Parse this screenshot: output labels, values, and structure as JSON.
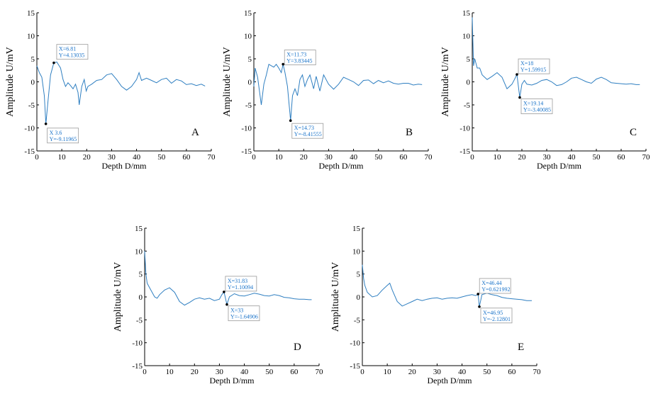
{
  "figure": {
    "panels": [
      {
        "label": "A",
        "xlabel": "Depth D/mm",
        "ylabel": "Amplitude U/mV",
        "xticks": [
          "0",
          "10",
          "20",
          "30",
          "40",
          "50",
          "60",
          "70"
        ],
        "yticks": [
          "15",
          "10",
          "5",
          "0",
          "-5",
          "-10",
          "-15"
        ],
        "datatips": [
          {
            "x_text": "X=6.81",
            "y_text": "Y=4.13035",
            "x": 6.81,
            "y": 4.13035
          },
          {
            "x_text": "X 3.6",
            "y_text": "Y=-9.11965",
            "x": 3.6,
            "y": -9.11965
          }
        ]
      },
      {
        "label": "B",
        "xlabel": "Depth D/mm",
        "ylabel": "Amplitude U/mV",
        "xticks": [
          "0",
          "10",
          "20",
          "30",
          "40",
          "50",
          "60",
          "70"
        ],
        "yticks": [
          "15",
          "10",
          "5",
          "0",
          "-5",
          "-10",
          "-15"
        ],
        "datatips": [
          {
            "x_text": "X=11.73",
            "y_text": "Y=3.83445",
            "x": 11.73,
            "y": 3.83445
          },
          {
            "x_text": "X=14.73",
            "y_text": "Y=-8.41555",
            "x": 14.73,
            "y": -8.41555
          }
        ]
      },
      {
        "label": "C",
        "xlabel": "Depth D/mm",
        "ylabel": "Amplitude U/mV",
        "xticks": [
          "0",
          "10",
          "20",
          "30",
          "40",
          "50",
          "60",
          "70"
        ],
        "yticks": [
          "15",
          "10",
          "5",
          "0",
          "-5",
          "-10",
          "-15"
        ],
        "datatips": [
          {
            "x_text": "X=18",
            "y_text": "Y=1.59915",
            "x": 18,
            "y": 1.59915
          },
          {
            "x_text": "X=19.14",
            "y_text": "Y=-3.40085",
            "x": 19.14,
            "y": -3.40085
          }
        ]
      },
      {
        "label": "D",
        "xlabel": "Depth D/mm",
        "ylabel": "Amplitude U/mV",
        "xticks": [
          "0",
          "10",
          "20",
          "30",
          "40",
          "50",
          "60",
          "70"
        ],
        "yticks": [
          "15",
          "10",
          "5",
          "0",
          "-5",
          "-10",
          "-15"
        ],
        "datatips": [
          {
            "x_text": "X=31.83",
            "y_text": "Y=1.10094",
            "x": 31.83,
            "y": 1.10094
          },
          {
            "x_text": "X=33",
            "y_text": "Y=-1.64906",
            "x": 33,
            "y": -1.64906
          }
        ]
      },
      {
        "label": "E",
        "xlabel": "Depth D/mm",
        "ylabel": "Amplitude U/mV",
        "xticks": [
          "0",
          "10",
          "20",
          "30",
          "40",
          "50",
          "60",
          "70"
        ],
        "yticks": [
          "15",
          "10",
          "5",
          "0",
          "-5",
          "-10",
          "-15"
        ],
        "datatips": [
          {
            "x_text": "X=46.44",
            "y_text": "Y=0.621992",
            "x": 46.44,
            "y": 0.621992
          },
          {
            "x_text": "X=46.95",
            "y_text": "Y=-2.12801",
            "x": 46.95,
            "y": -2.12801
          }
        ]
      }
    ]
  },
  "colors": {
    "series": "#2f7fc1",
    "datatip_text": "#1a73c9",
    "axis": "#000000"
  },
  "chart_data": [
    {
      "type": "line",
      "label": "A",
      "xlim": [
        0,
        70
      ],
      "ylim": [
        -15,
        15
      ],
      "grid": false,
      "series": [
        {
          "x": [
            0,
            1,
            2,
            3,
            3.6,
            4.5,
            5.5,
            6.81,
            8,
            9.5,
            10.5,
            11.5,
            12.5,
            13.5,
            14.5,
            15.5,
            16.5,
            17,
            18,
            19,
            19.8,
            20.5,
            22,
            24,
            26,
            28,
            30,
            32,
            34,
            36,
            38,
            40,
            41,
            42,
            44,
            46,
            48,
            50,
            52,
            54,
            56,
            58,
            60,
            62,
            64,
            66,
            67.5
          ],
          "y": [
            3.5,
            2,
            1,
            -3,
            -9.12,
            -4,
            1.5,
            4.13,
            4.3,
            3,
            0.5,
            -1,
            -0.2,
            -0.8,
            -1.5,
            -0.5,
            -2.3,
            -5,
            -1,
            0.5,
            -2,
            -1,
            -0.5,
            0.3,
            0.5,
            1.5,
            1.8,
            0.5,
            -1,
            -1.8,
            -1,
            0.5,
            2,
            0.3,
            0.8,
            0.3,
            -0.2,
            0.5,
            0.8,
            -0.3,
            0.5,
            0.2,
            -0.6,
            -0.4,
            -0.8,
            -0.5,
            -0.9
          ]
        }
      ]
    },
    {
      "type": "line",
      "label": "B",
      "xlim": [
        0,
        70
      ],
      "ylim": [
        -15,
        15
      ],
      "grid": false,
      "series": [
        {
          "x": [
            0,
            0.5,
            1.5,
            3,
            4,
            5,
            6,
            7,
            8,
            9,
            10,
            11,
            11.73,
            12.5,
            13.5,
            14.73,
            15.5,
            16.5,
            17.5,
            18.5,
            19.5,
            20.5,
            21.5,
            22.5,
            24,
            25,
            26.5,
            28,
            30,
            32,
            34,
            36,
            38,
            40,
            42,
            44,
            46,
            48,
            50,
            52,
            54,
            56,
            58,
            60,
            62,
            64,
            66,
            67.5
          ],
          "y": [
            -1,
            3,
            1,
            -5,
            -0.5,
            1.5,
            3.8,
            3.5,
            3.2,
            3.8,
            3,
            2,
            3.83,
            2,
            -1,
            -8.42,
            -3,
            -1.5,
            -3,
            0.5,
            1.5,
            -1,
            0.5,
            1.5,
            -1.5,
            1.2,
            -2,
            1.5,
            -0.5,
            -1.6,
            -0.5,
            1,
            0.5,
            0,
            -0.8,
            0.3,
            0.4,
            -0.4,
            0.3,
            -0.2,
            0.2,
            -0.3,
            -0.5,
            -0.3,
            -0.3,
            -0.7,
            -0.5,
            -0.6
          ]
        }
      ]
    },
    {
      "type": "line",
      "label": "C",
      "xlim": [
        0,
        70
      ],
      "ylim": [
        -15,
        15
      ],
      "grid": false,
      "series": [
        {
          "x": [
            0,
            0.5,
            1,
            2,
            3,
            4,
            6,
            8,
            10,
            12,
            14,
            16,
            17,
            18,
            19.14,
            20,
            21,
            22,
            24,
            26,
            28,
            30,
            32,
            34,
            36,
            38,
            40,
            42,
            44,
            46,
            48,
            50,
            52,
            54,
            56,
            58,
            60,
            62,
            64,
            66,
            67.5
          ],
          "y": [
            14,
            3.5,
            5,
            3,
            3,
            1.5,
            0.5,
            1.2,
            2,
            1,
            -1.5,
            -0.5,
            0.5,
            1.6,
            -3.4,
            -0.5,
            0.3,
            -0.5,
            -0.7,
            -0.3,
            0.3,
            0.5,
            0,
            -0.8,
            -0.6,
            0,
            0.8,
            1,
            0.5,
            0,
            -0.3,
            0.6,
            1,
            0.5,
            -0.2,
            -0.3,
            -0.4,
            -0.5,
            -0.4,
            -0.6,
            -0.6
          ]
        }
      ]
    },
    {
      "type": "line",
      "label": "D",
      "xlim": [
        0,
        70
      ],
      "ylim": [
        -15,
        15
      ],
      "grid": false,
      "series": [
        {
          "x": [
            0,
            0.5,
            1,
            2,
            3,
            4,
            5,
            6,
            8,
            10,
            12,
            14,
            16,
            18,
            20,
            22,
            24,
            26,
            28,
            30,
            31,
            31.83,
            33,
            34,
            36,
            38,
            40,
            42,
            44,
            46,
            48,
            50,
            52,
            54,
            56,
            58,
            60,
            62,
            64,
            66,
            67
          ],
          "y": [
            10,
            5,
            3,
            2,
            1,
            0,
            -0.3,
            0.5,
            1.5,
            2,
            1,
            -1,
            -1.8,
            -1.2,
            -0.5,
            -0.2,
            -0.5,
            -0.3,
            -0.8,
            -0.5,
            0.5,
            1.1,
            -1.65,
            0,
            0.7,
            0.3,
            0.2,
            0.5,
            0.8,
            0.6,
            0.3,
            0.2,
            0.5,
            0.3,
            -0.1,
            -0.2,
            -0.4,
            -0.5,
            -0.5,
            -0.6,
            -0.6
          ]
        }
      ]
    },
    {
      "type": "line",
      "label": "E",
      "xlim": [
        0,
        70
      ],
      "ylim": [
        -15,
        15
      ],
      "grid": false,
      "series": [
        {
          "x": [
            0,
            0.5,
            1,
            2,
            3,
            4,
            6,
            8,
            10,
            11,
            12,
            14,
            16,
            18,
            20,
            22,
            24,
            26,
            28,
            30,
            32,
            34,
            36,
            38,
            40,
            42,
            44,
            45.5,
            46.44,
            46.95,
            48,
            50,
            52,
            54,
            56,
            58,
            60,
            62,
            64,
            66,
            68
          ],
          "y": [
            7,
            4,
            2.5,
            1,
            0.5,
            0,
            0.3,
            1.5,
            2.5,
            3,
            1.5,
            -1,
            -2,
            -1.5,
            -1,
            -0.5,
            -0.8,
            -0.5,
            -0.3,
            -0.2,
            -0.5,
            -0.3,
            -0.2,
            -0.3,
            0,
            0.3,
            0.5,
            0.3,
            0.62,
            -2.13,
            0.5,
            0.8,
            0.5,
            0.3,
            -0.1,
            -0.3,
            -0.4,
            -0.5,
            -0.6,
            -0.8,
            -0.8
          ]
        }
      ]
    }
  ]
}
